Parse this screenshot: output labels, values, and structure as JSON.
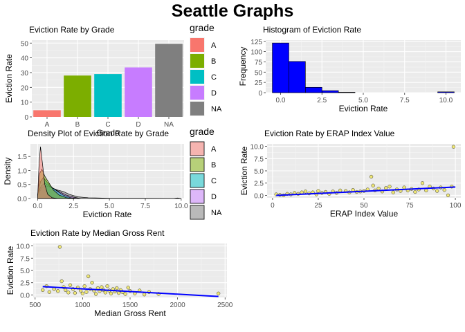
{
  "page": {
    "title": "Seattle Graphs"
  },
  "colors": {
    "panel_bg": "#ebebeb",
    "grid_major": "#ffffff",
    "axis_text": "#4d4d4d",
    "grade_A": "#f8766d",
    "grade_B": "#7cae00",
    "grade_C": "#00bfc4",
    "grade_D": "#c77cff",
    "grade_NA": "#7f7f7f",
    "histogram_fill": "#0000ff",
    "trend_line": "#0000ff",
    "point_fill": "#f0e442"
  },
  "legends": [
    {
      "title": "grade",
      "keys": [
        "A",
        "B",
        "C",
        "D",
        "NA"
      ]
    },
    {
      "title": "grade",
      "keys": [
        "A",
        "B",
        "C",
        "D",
        "NA"
      ]
    }
  ],
  "chart_data": [
    {
      "type": "bar",
      "title": "Eviction Rate by Grade",
      "xlabel": "Grade",
      "ylabel": "Eviction Rate",
      "categories": [
        "A",
        "B",
        "C",
        "D",
        "NA"
      ],
      "values": [
        4.5,
        28,
        29,
        33.5,
        49.5
      ],
      "ylim": [
        0,
        52
      ],
      "yticks": [
        0,
        10,
        20,
        30,
        40,
        50
      ],
      "grid": true,
      "legend": "right"
    },
    {
      "type": "bar",
      "title": "Histogram of Eviction Rate",
      "xlabel": "Eviction Rate",
      "ylabel": "Frequency",
      "bins": [
        {
          "x0": -0.5,
          "x1": 0.5,
          "count": 121
        },
        {
          "x0": 0.5,
          "x1": 1.5,
          "count": 76
        },
        {
          "x0": 1.5,
          "x1": 2.5,
          "count": 13
        },
        {
          "x0": 2.5,
          "x1": 3.5,
          "count": 5
        },
        {
          "x0": 3.5,
          "x1": 4.5,
          "count": 1
        },
        {
          "x0": 4.5,
          "x1": 5.5,
          "count": 0
        },
        {
          "x0": 5.5,
          "x1": 6.5,
          "count": 0
        },
        {
          "x0": 6.5,
          "x1": 7.5,
          "count": 0
        },
        {
          "x0": 7.5,
          "x1": 8.5,
          "count": 0
        },
        {
          "x0": 8.5,
          "x1": 9.5,
          "count": 0
        },
        {
          "x0": 9.5,
          "x1": 10.5,
          "count": 2
        }
      ],
      "xlim": [
        -0.9,
        10.9
      ],
      "ylim": [
        0,
        128
      ],
      "xticks": [
        0.0,
        2.5,
        5.0,
        7.5,
        10.0
      ],
      "xtick_labels": [
        "0.0",
        "2.5",
        "5.0",
        "7.5",
        "10.0"
      ],
      "yticks": [
        0,
        25,
        50,
        75,
        100,
        125
      ],
      "grid": true
    },
    {
      "type": "area",
      "title": "Density Plot of Eviction Rate by Grade",
      "xlabel": "Eviction Rate",
      "ylabel": "Density",
      "series": [
        {
          "name": "A",
          "points": [
            [
              0,
              0.05
            ],
            [
              0.1,
              1.2
            ],
            [
              0.2,
              1.85
            ],
            [
              0.35,
              1.2
            ],
            [
              0.5,
              0.5
            ],
            [
              0.7,
              0.15
            ],
            [
              1.0,
              0.03
            ],
            [
              1.4,
              0
            ]
          ]
        },
        {
          "name": "B",
          "points": [
            [
              0,
              0.1
            ],
            [
              0.15,
              0.9
            ],
            [
              0.3,
              1.05
            ],
            [
              0.5,
              0.8
            ],
            [
              0.8,
              0.55
            ],
            [
              1.1,
              0.3
            ],
            [
              1.5,
              0.12
            ],
            [
              2.0,
              0.03
            ],
            [
              2.5,
              0
            ]
          ]
        },
        {
          "name": "C",
          "points": [
            [
              0,
              0.1
            ],
            [
              0.2,
              0.6
            ],
            [
              0.4,
              0.75
            ],
            [
              0.7,
              0.55
            ],
            [
              1.0,
              0.4
            ],
            [
              1.4,
              0.25
            ],
            [
              1.8,
              0.12
            ],
            [
              2.3,
              0.03
            ],
            [
              2.8,
              0
            ]
          ]
        },
        {
          "name": "D",
          "points": [
            [
              0,
              0.15
            ],
            [
              0.25,
              0.45
            ],
            [
              0.5,
              0.55
            ],
            [
              0.8,
              0.45
            ],
            [
              1.1,
              0.35
            ],
            [
              1.5,
              0.25
            ],
            [
              2.0,
              0.12
            ],
            [
              2.5,
              0.05
            ],
            [
              3.0,
              0
            ]
          ]
        },
        {
          "name": "NA",
          "points": [
            [
              0,
              0.1
            ],
            [
              0.3,
              0.4
            ],
            [
              0.6,
              0.45
            ],
            [
              1.0,
              0.38
            ],
            [
              1.4,
              0.3
            ],
            [
              1.8,
              0.25
            ],
            [
              2.2,
              0.15
            ],
            [
              2.8,
              0.06
            ],
            [
              3.5,
              0.03
            ],
            [
              5,
              0.01
            ],
            [
              9.5,
              0.005
            ],
            [
              9.75,
              0.02
            ],
            [
              10,
              0
            ]
          ]
        }
      ],
      "xlim": [
        -0.5,
        10.2
      ],
      "ylim": [
        0,
        1.95
      ],
      "xticks": [
        0.0,
        2.5,
        5.0,
        7.5,
        10.0
      ],
      "xtick_labels": [
        "0.0",
        "2.5",
        "5.0",
        "7.5",
        "10.0"
      ],
      "yticks": [
        0.0,
        0.5,
        1.0,
        1.5
      ],
      "ytick_labels": [
        "0.0",
        "0.5",
        "1.0",
        "1.5"
      ],
      "grid": true,
      "legend": "right"
    },
    {
      "type": "scatter",
      "title": "Eviction Rate by ERAP Index Value",
      "xlabel": "ERAP Index Value",
      "ylabel": "Eviction Rate",
      "points": [
        [
          2,
          0.2
        ],
        [
          4,
          0.1
        ],
        [
          6,
          0.0
        ],
        [
          8,
          0.3
        ],
        [
          10,
          0.2
        ],
        [
          12,
          0.5
        ],
        [
          14,
          0.3
        ],
        [
          16,
          0.6
        ],
        [
          18,
          0.8
        ],
        [
          20,
          0.4
        ],
        [
          22,
          0.6
        ],
        [
          24,
          0.2
        ],
        [
          25,
          0.9
        ],
        [
          27,
          0.5
        ],
        [
          29,
          0.7
        ],
        [
          31,
          0.3
        ],
        [
          33,
          0.8
        ],
        [
          35,
          0.5
        ],
        [
          37,
          1.0
        ],
        [
          40,
          0.9
        ],
        [
          42,
          0.6
        ],
        [
          44,
          1.1
        ],
        [
          46,
          0.7
        ],
        [
          48,
          0.8
        ],
        [
          50,
          0.9
        ],
        [
          52,
          1.2
        ],
        [
          54,
          3.8
        ],
        [
          55,
          2.0
        ],
        [
          56,
          1.0
        ],
        [
          58,
          1.4
        ],
        [
          60,
          0.8
        ],
        [
          62,
          1.5
        ],
        [
          64,
          1.8
        ],
        [
          66,
          0.6
        ],
        [
          68,
          1.2
        ],
        [
          70,
          0.9
        ],
        [
          72,
          1.6
        ],
        [
          74,
          1.0
        ],
        [
          76,
          1.3
        ],
        [
          78,
          0.7
        ],
        [
          80,
          1.2
        ],
        [
          82,
          2.5
        ],
        [
          84,
          1.0
        ],
        [
          86,
          1.8
        ],
        [
          88,
          1.4
        ],
        [
          90,
          0.9
        ],
        [
          92,
          1.6
        ],
        [
          94,
          1.1
        ],
        [
          96,
          0.0
        ],
        [
          98,
          1.8
        ],
        [
          99,
          9.9
        ]
      ],
      "trend": [
        [
          2,
          0.0
        ],
        [
          100,
          1.7
        ]
      ],
      "xlim": [
        -3,
        103
      ],
      "ylim": [
        -0.5,
        10.5
      ],
      "xticks": [
        0,
        25,
        50,
        75,
        100
      ],
      "yticks": [
        0.0,
        2.5,
        5.0,
        7.5,
        10.0
      ],
      "ytick_labels": [
        "0.0",
        "2.5",
        "5.0",
        "7.5",
        "10.0"
      ],
      "grid": true
    },
    {
      "type": "scatter",
      "title": "Eviction Rate by Median Gross Rent",
      "xlabel": "Median Gross Rent",
      "ylabel": "Eviction Rate",
      "points": [
        [
          580,
          1.0
        ],
        [
          620,
          1.8
        ],
        [
          650,
          0.6
        ],
        [
          700,
          1.2
        ],
        [
          740,
          0.8
        ],
        [
          760,
          9.8
        ],
        [
          780,
          2.8
        ],
        [
          800,
          1.6
        ],
        [
          820,
          1.0
        ],
        [
          850,
          0.5
        ],
        [
          870,
          2.0
        ],
        [
          900,
          1.2
        ],
        [
          920,
          0.4
        ],
        [
          950,
          1.5
        ],
        [
          980,
          0.9
        ],
        [
          1000,
          0.3
        ],
        [
          1020,
          1.8
        ],
        [
          1040,
          0.6
        ],
        [
          1060,
          3.8
        ],
        [
          1080,
          1.2
        ],
        [
          1100,
          2.5
        ],
        [
          1120,
          0.9
        ],
        [
          1140,
          0.2
        ],
        [
          1160,
          1.4
        ],
        [
          1180,
          0.8
        ],
        [
          1200,
          1.6
        ],
        [
          1220,
          1.0
        ],
        [
          1240,
          0.5
        ],
        [
          1260,
          1.8
        ],
        [
          1280,
          0.9
        ],
        [
          1300,
          0.3
        ],
        [
          1320,
          1.2
        ],
        [
          1340,
          0.7
        ],
        [
          1360,
          1.4
        ],
        [
          1380,
          0.4
        ],
        [
          1400,
          1.0
        ],
        [
          1420,
          0.6
        ],
        [
          1450,
          0.2
        ],
        [
          1480,
          1.5
        ],
        [
          1500,
          0.8
        ],
        [
          1550,
          0.3
        ],
        [
          1600,
          0.9
        ],
        [
          1650,
          0.1
        ],
        [
          1700,
          0.6
        ],
        [
          1800,
          0.2
        ],
        [
          2430,
          0.3
        ]
      ],
      "trend": [
        [
          580,
          1.7
        ],
        [
          2430,
          -0.3
        ]
      ],
      "xlim": [
        480,
        2520
      ],
      "ylim": [
        -0.5,
        10.5
      ],
      "xticks": [
        500,
        1000,
        1500,
        2000,
        2500
      ],
      "yticks": [
        0.0,
        2.5,
        5.0,
        7.5,
        10.0
      ],
      "ytick_labels": [
        "0.0",
        "2.5",
        "5.0",
        "7.5",
        "10.0"
      ],
      "grid": true
    }
  ]
}
